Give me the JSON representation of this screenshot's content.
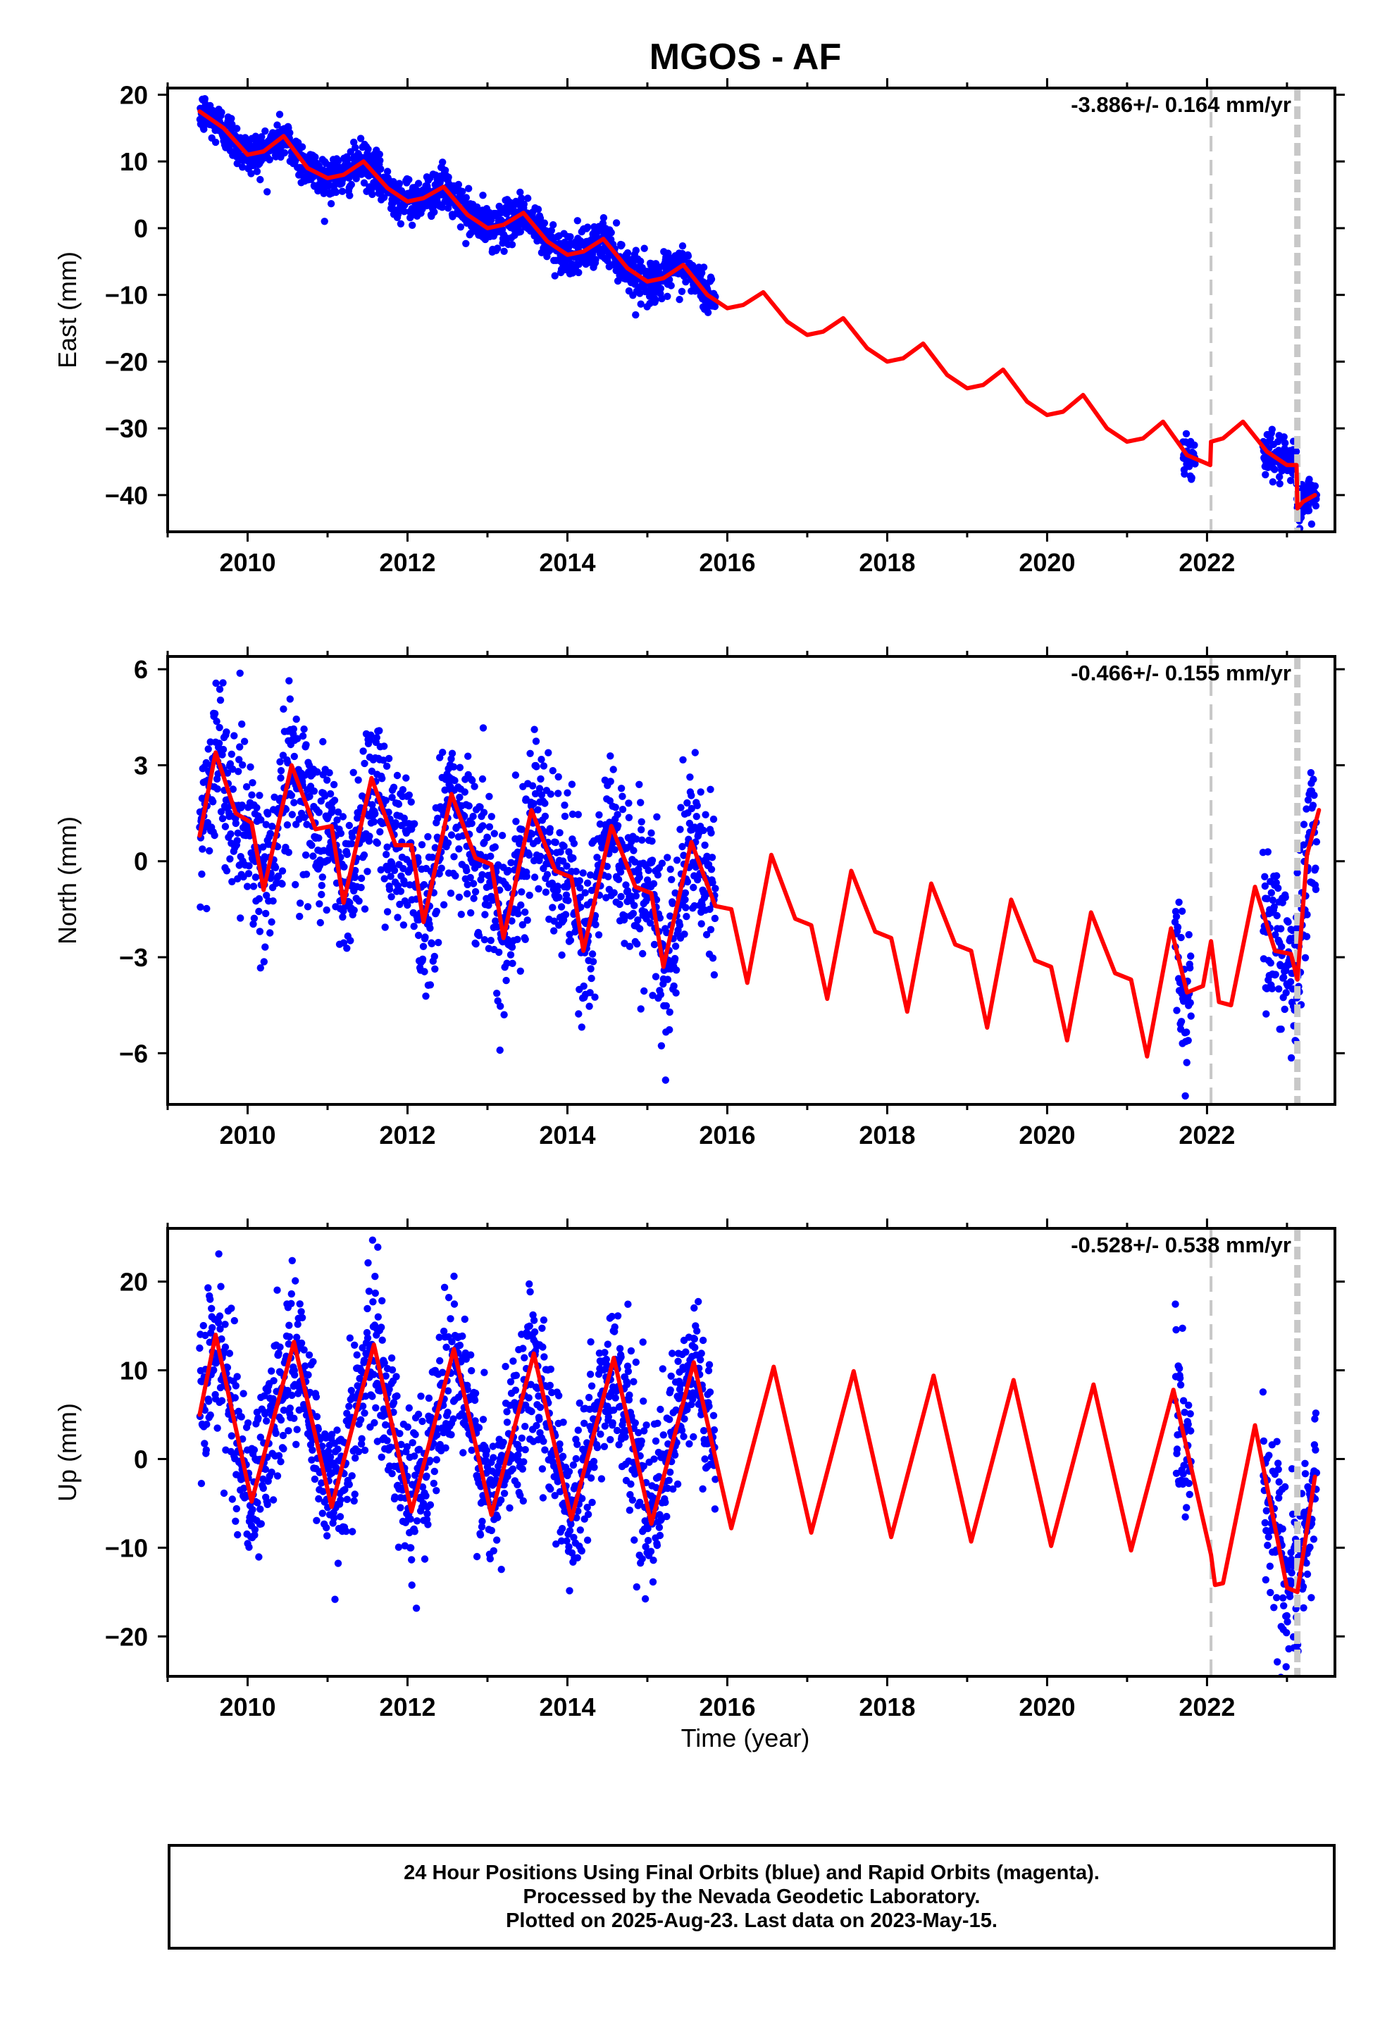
{
  "title": "MGOS - AF",
  "xlabel": "Time (year)",
  "footer": {
    "line1": "24 Hour Positions Using Final Orbits (blue) and Rapid Orbits (magenta).",
    "line2": "Processed by the Nevada Geodetic Laboratory.",
    "line3": "Plotted on 2025-Aug-23. Last data on 2023-May-15."
  },
  "colors": {
    "points": "#0000ff",
    "model": "#ff0000",
    "equipment_change": "#c8c8c8"
  },
  "chart_data": [
    {
      "type": "scatter",
      "panel": "East",
      "ylabel": "East (mm)",
      "rate_label": "-3.886+/- 0.164 mm/yr",
      "rate": -3.886,
      "xlim": [
        2009.0,
        2023.6
      ],
      "ylim": [
        -45.5,
        21
      ],
      "yticks": [
        20,
        10,
        0,
        -10,
        -20,
        -30,
        -40
      ],
      "xticks": [
        2010,
        2012,
        2014,
        2016,
        2018,
        2020,
        2022
      ],
      "vlines": [
        2022.05,
        2023.13
      ],
      "model": {
        "x": [
          2009.4,
          2009.7,
          2010.0,
          2010.2,
          2010.45,
          2010.75,
          2011.0,
          2011.2,
          2011.45,
          2011.75,
          2012.0,
          2012.2,
          2012.45,
          2012.75,
          2013.0,
          2013.2,
          2013.45,
          2013.75,
          2014.0,
          2014.2,
          2014.45,
          2014.75,
          2015.0,
          2015.2,
          2015.45,
          2015.75,
          2016.0,
          2016.2,
          2016.45,
          2016.75,
          2017.0,
          2017.2,
          2017.45,
          2017.75,
          2018.0,
          2018.2,
          2018.45,
          2018.75,
          2019.0,
          2019.2,
          2019.45,
          2019.75,
          2020.0,
          2020.2,
          2020.45,
          2020.75,
          2021.0,
          2021.2,
          2021.45,
          2021.75,
          2022.04,
          2022.05,
          2022.2,
          2022.45,
          2022.75,
          2023.0,
          2023.12,
          2023.13,
          2023.2,
          2023.35
        ],
        "y": [
          17.5,
          15,
          11,
          11.5,
          13.8,
          9,
          7.5,
          8,
          10,
          6,
          4,
          4.5,
          6.2,
          2,
          0,
          0.5,
          2.3,
          -2,
          -4,
          -3.5,
          -1.6,
          -6,
          -8,
          -7.5,
          -5.5,
          -10,
          -12,
          -11.5,
          -9.6,
          -14,
          -16,
          -15.5,
          -13.5,
          -18,
          -20,
          -19.5,
          -17.3,
          -22,
          -24,
          -23.5,
          -21.2,
          -26,
          -28,
          -27.5,
          -25,
          -30,
          -32,
          -31.5,
          -29,
          -34,
          -35.5,
          -32,
          -31.5,
          -29,
          -33.5,
          -35.5,
          -35.5,
          -42,
          -41,
          -40
        ]
      },
      "data_summary": {
        "segments": [
          [
            2009.4,
            2015.85
          ],
          [
            2021.7,
            2021.85
          ],
          [
            2022.7,
            2023.37
          ]
        ],
        "scatter_mm": 1.6
      }
    },
    {
      "type": "scatter",
      "panel": "North",
      "ylabel": "North (mm)",
      "rate_label": "-0.466+/- 0.155 mm/yr",
      "rate": -0.466,
      "xlim": [
        2009.0,
        2023.6
      ],
      "ylim": [
        -7.6,
        6.4
      ],
      "yticks": [
        6,
        3,
        0,
        -3,
        -6
      ],
      "xticks": [
        2010,
        2012,
        2014,
        2016,
        2018,
        2020,
        2022
      ],
      "vlines": [
        2022.05,
        2023.13
      ],
      "model": {
        "x": [
          2009.4,
          2009.6,
          2009.85,
          2010.05,
          2010.2,
          2010.55,
          2010.85,
          2011.05,
          2011.2,
          2011.55,
          2011.85,
          2012.05,
          2012.2,
          2012.55,
          2012.85,
          2013.05,
          2013.2,
          2013.55,
          2013.85,
          2014.05,
          2014.2,
          2014.55,
          2014.85,
          2015.05,
          2015.2,
          2015.55,
          2015.85,
          2016.05,
          2016.25,
          2016.55,
          2016.85,
          2017.05,
          2017.25,
          2017.55,
          2017.85,
          2018.05,
          2018.25,
          2018.55,
          2018.85,
          2019.05,
          2019.25,
          2019.55,
          2019.85,
          2020.05,
          2020.25,
          2020.55,
          2020.85,
          2021.05,
          2021.25,
          2021.55,
          2021.75,
          2021.95,
          2022.05,
          2022.15,
          2022.3,
          2022.6,
          2022.85,
          2023.05,
          2023.13,
          2023.25,
          2023.4
        ],
        "y": [
          0.8,
          3.4,
          1.5,
          1.2,
          -0.9,
          3.0,
          1.0,
          1.1,
          -1.3,
          2.6,
          0.5,
          0.5,
          -1.9,
          2.1,
          0.1,
          -0.1,
          -2.4,
          1.6,
          -0.3,
          -0.5,
          -2.8,
          1.1,
          -0.8,
          -1.0,
          -3.3,
          0.6,
          -1.4,
          -1.5,
          -3.8,
          0.2,
          -1.8,
          -2.0,
          -4.3,
          -0.3,
          -2.2,
          -2.4,
          -4.7,
          -0.7,
          -2.6,
          -2.8,
          -5.2,
          -1.2,
          -3.1,
          -3.3,
          -5.6,
          -1.6,
          -3.5,
          -3.7,
          -6.1,
          -2.1,
          -4.1,
          -3.9,
          -2.5,
          -4.4,
          -4.5,
          -0.8,
          -2.8,
          -2.9,
          -3.7,
          0.2,
          1.6
        ]
      },
      "data_summary": {
        "segments": [
          [
            2009.4,
            2015.85
          ],
          [
            2021.6,
            2021.8
          ],
          [
            2022.7,
            2023.37
          ]
        ],
        "scatter_mm": 1.3
      }
    },
    {
      "type": "scatter",
      "panel": "Up",
      "ylabel": "Up (mm)",
      "rate_label": "-0.528+/- 0.538 mm/yr",
      "rate": -0.528,
      "xlim": [
        2009.0,
        2023.6
      ],
      "ylim": [
        -24.5,
        26
      ],
      "yticks": [
        20,
        10,
        0,
        -10,
        -20
      ],
      "xticks": [
        2010,
        2012,
        2014,
        2016,
        2018,
        2020,
        2022
      ],
      "vlines": [
        2022.05,
        2023.13
      ],
      "model": {
        "x": [
          2009.4,
          2009.6,
          2010.05,
          2010.58,
          2011.05,
          2011.58,
          2012.05,
          2012.58,
          2013.05,
          2013.58,
          2014.05,
          2014.58,
          2015.05,
          2015.58,
          2016.05,
          2016.58,
          2017.05,
          2017.58,
          2018.05,
          2018.58,
          2019.05,
          2019.58,
          2020.05,
          2020.58,
          2021.05,
          2021.58,
          2022.05,
          2022.1,
          2022.2,
          2022.6,
          2023.0,
          2023.13,
          2023.35
        ],
        "y": [
          5,
          14,
          -4.8,
          13.2,
          -5.4,
          12.9,
          -5.9,
          12.4,
          -6.3,
          11.9,
          -6.8,
          11.4,
          -7.3,
          10.9,
          -7.8,
          10.4,
          -8.3,
          9.9,
          -8.8,
          9.4,
          -9.3,
          8.9,
          -9.8,
          8.4,
          -10.3,
          7.8,
          -10.8,
          -14.2,
          -14,
          3.8,
          -14.5,
          -15,
          -2
        ]
      },
      "data_summary": {
        "segments": [
          [
            2009.4,
            2015.85
          ],
          [
            2021.6,
            2021.8
          ],
          [
            2022.7,
            2023.37
          ]
        ],
        "scatter_mm": 4.5
      }
    }
  ]
}
